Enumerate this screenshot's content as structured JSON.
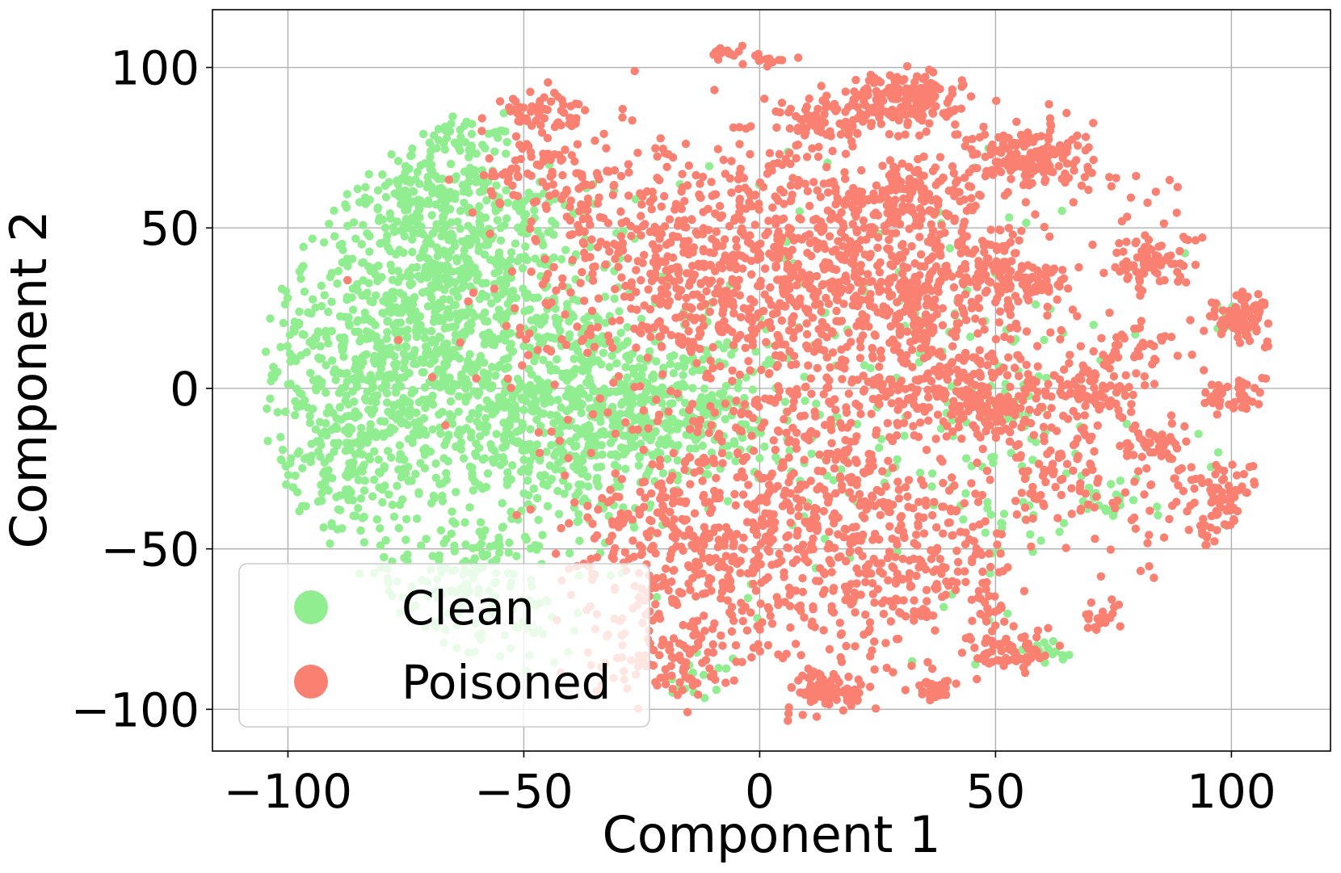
{
  "chart_data": {
    "type": "scatter",
    "xlabel": "Component 1",
    "ylabel": "Component 2",
    "xlim": [
      -116,
      121
    ],
    "ylim": [
      -113,
      118
    ],
    "xticks": [
      -100,
      -50,
      0,
      50,
      100
    ],
    "xtick_labels": [
      "−100",
      "−50",
      "0",
      "50",
      "100"
    ],
    "yticks": [
      -100,
      -50,
      0,
      50,
      100
    ],
    "ytick_labels": [
      "−100",
      "−50",
      "0",
      "50",
      "100"
    ],
    "grid": true,
    "legend_position": "lower-left",
    "series": [
      {
        "name": "Clean",
        "color": "#90EE90",
        "clusters": [
          {
            "cx": -78,
            "cy": 12,
            "sx": 14,
            "sy": 24,
            "n": 650
          },
          {
            "cx": -45,
            "cy": -5,
            "sx": 17,
            "sy": 20,
            "n": 700
          },
          {
            "cx": -18,
            "cy": -8,
            "sx": 12,
            "sy": 12,
            "n": 300
          },
          {
            "cx": -72,
            "cy": 62,
            "sx": 8,
            "sy": 6,
            "n": 140
          },
          {
            "cx": -55,
            "cy": 45,
            "sx": 10,
            "sy": 12,
            "n": 150
          },
          {
            "cx": -62,
            "cy": 78,
            "sx": 5,
            "sy": 4,
            "n": 50
          },
          {
            "cx": -62,
            "cy": -62,
            "sx": 12,
            "sy": 12,
            "n": 180
          },
          {
            "cx": -88,
            "cy": -25,
            "sx": 8,
            "sy": 12,
            "n": 130
          },
          {
            "cx": -65,
            "cy": 30,
            "sx": 15,
            "sy": 18,
            "n": 200
          },
          {
            "cx": 30,
            "cy": 0,
            "sx": 30,
            "sy": 35,
            "n": 160
          },
          {
            "cx": 55,
            "cy": -25,
            "sx": 12,
            "sy": 20,
            "n": 60
          },
          {
            "cx": 74,
            "cy": -35,
            "sx": 3,
            "sy": 3,
            "n": 20
          },
          {
            "cx": 62,
            "cy": -82,
            "sx": 3,
            "sy": 2,
            "n": 16
          },
          {
            "cx": -14,
            "cy": -90,
            "sx": 4,
            "sy": 3,
            "n": 18
          },
          {
            "cx": 100,
            "cy": 20,
            "sx": 3,
            "sy": 3,
            "n": 12
          }
        ]
      },
      {
        "name": "Poisoned",
        "color": "#FA8072",
        "clusters": [
          {
            "cx": 10,
            "cy": 33,
            "sx": 22,
            "sy": 20,
            "n": 900
          },
          {
            "cx": 10,
            "cy": -45,
            "sx": 20,
            "sy": 22,
            "n": 700
          },
          {
            "cx": 30,
            "cy": 90,
            "sx": 6,
            "sy": 4,
            "n": 200
          },
          {
            "cx": 57,
            "cy": 72,
            "sx": 6,
            "sy": 5,
            "n": 160
          },
          {
            "cx": 30,
            "cy": 60,
            "sx": 8,
            "sy": 6,
            "n": 140
          },
          {
            "cx": 42,
            "cy": 0,
            "sx": 10,
            "sy": 8,
            "n": 200
          },
          {
            "cx": 70,
            "cy": 0,
            "sx": 5,
            "sy": 5,
            "n": 100
          },
          {
            "cx": 51,
            "cy": -8,
            "sx": 3,
            "sy": 3,
            "n": 50
          },
          {
            "cx": 32,
            "cy": 30,
            "sx": 6,
            "sy": 8,
            "n": 100
          },
          {
            "cx": 62,
            "cy": -25,
            "sx": 6,
            "sy": 8,
            "n": 80
          },
          {
            "cx": 51,
            "cy": 35,
            "sx": 6,
            "sy": 10,
            "n": 80
          },
          {
            "cx": 57,
            "cy": 33,
            "sx": 4,
            "sy": 3,
            "n": 50
          },
          {
            "cx": 83,
            "cy": 40,
            "sx": 5,
            "sy": 4,
            "n": 80
          },
          {
            "cx": 103,
            "cy": 22,
            "sx": 4,
            "sy": 4,
            "n": 100
          },
          {
            "cx": 98,
            "cy": -35,
            "sx": 5,
            "sy": 6,
            "n": 90
          },
          {
            "cx": 83,
            "cy": -18,
            "sx": 3,
            "sy": 4,
            "n": 50
          },
          {
            "cx": 100,
            "cy": -2,
            "sx": 4,
            "sy": 3,
            "n": 40
          },
          {
            "cx": 54,
            "cy": -82,
            "sx": 4,
            "sy": 3,
            "n": 60
          },
          {
            "cx": 15,
            "cy": -94,
            "sx": 4,
            "sy": 3,
            "n": 70
          },
          {
            "cx": 37,
            "cy": -94,
            "sx": 3,
            "sy": 2,
            "n": 30
          },
          {
            "cx": 13,
            "cy": 83,
            "sx": 5,
            "sy": 4,
            "n": 60
          },
          {
            "cx": 3,
            "cy": 102,
            "sx": 2,
            "sy": 1,
            "n": 14
          },
          {
            "cx": -7,
            "cy": 105,
            "sx": 2,
            "sy": 1,
            "n": 14
          },
          {
            "cx": -45,
            "cy": 85,
            "sx": 5,
            "sy": 4,
            "n": 60
          },
          {
            "cx": -45,
            "cy": 66,
            "sx": 8,
            "sy": 6,
            "n": 70
          },
          {
            "cx": -22,
            "cy": 45,
            "sx": 15,
            "sy": 20,
            "n": 250
          },
          {
            "cx": -20,
            "cy": -55,
            "sx": 10,
            "sy": 15,
            "n": 180
          },
          {
            "cx": -20,
            "cy": -85,
            "sx": 8,
            "sy": 6,
            "n": 80
          },
          {
            "cx": 40,
            "cy": -60,
            "sx": 10,
            "sy": 12,
            "n": 120
          },
          {
            "cx": 73,
            "cy": -70,
            "sx": 2,
            "sy": 3,
            "n": 20
          },
          {
            "cx": 80,
            "cy": 15,
            "sx": 5,
            "sy": 5,
            "n": 40
          },
          {
            "cx": 88,
            "cy": -45,
            "sx": 12,
            "sy": 15,
            "n": 40
          },
          {
            "cx": 80,
            "cy": 65,
            "sx": 8,
            "sy": 8,
            "n": 30
          },
          {
            "cx": -30,
            "cy": 25,
            "sx": 25,
            "sy": 30,
            "n": 60
          }
        ]
      }
    ]
  }
}
